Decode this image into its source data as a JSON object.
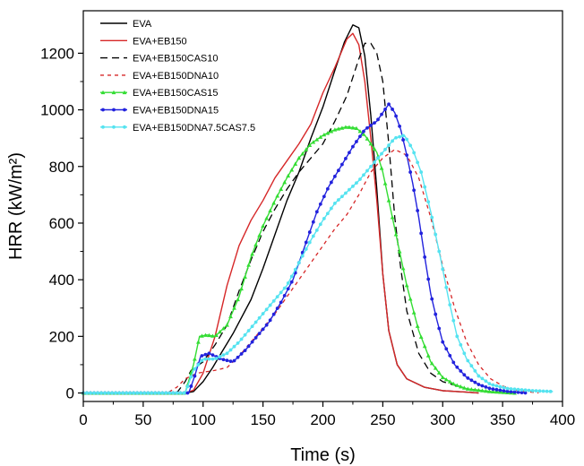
{
  "chart_data": {
    "type": "line",
    "xlabel": "Time (s)",
    "ylabel": "HRR (kW/m²)",
    "xlim": [
      0,
      400
    ],
    "ylim": [
      -30,
      1350
    ],
    "xticks": [
      0,
      50,
      100,
      150,
      200,
      250,
      300,
      350,
      400
    ],
    "yticks": [
      0,
      200,
      400,
      600,
      800,
      1000,
      1200
    ],
    "grid": false,
    "legend_position": "top-left",
    "series": [
      {
        "name": "EVA",
        "color": "#000000",
        "dash": "solid",
        "marker": "none",
        "points": [
          [
            0,
            0
          ],
          [
            85,
            0
          ],
          [
            92,
            5
          ],
          [
            100,
            40
          ],
          [
            108,
            90
          ],
          [
            115,
            140
          ],
          [
            125,
            210
          ],
          [
            140,
            330
          ],
          [
            150,
            440
          ],
          [
            160,
            560
          ],
          [
            170,
            680
          ],
          [
            180,
            780
          ],
          [
            190,
            900
          ],
          [
            200,
            1010
          ],
          [
            210,
            1140
          ],
          [
            218,
            1240
          ],
          [
            225,
            1300
          ],
          [
            230,
            1290
          ],
          [
            235,
            1190
          ],
          [
            240,
            980
          ],
          [
            245,
            720
          ],
          [
            250,
            420
          ],
          [
            255,
            220
          ],
          [
            262,
            100
          ],
          [
            270,
            50
          ],
          [
            285,
            20
          ],
          [
            300,
            8
          ],
          [
            320,
            3
          ],
          [
            330,
            0
          ]
        ]
      },
      {
        "name": "EVA+EB150",
        "color": "#d62728",
        "dash": "solid",
        "marker": "none",
        "points": [
          [
            0,
            0
          ],
          [
            85,
            0
          ],
          [
            92,
            10
          ],
          [
            100,
            70
          ],
          [
            110,
            200
          ],
          [
            120,
            380
          ],
          [
            130,
            520
          ],
          [
            140,
            610
          ],
          [
            150,
            680
          ],
          [
            160,
            760
          ],
          [
            170,
            820
          ],
          [
            180,
            880
          ],
          [
            190,
            950
          ],
          [
            200,
            1060
          ],
          [
            210,
            1150
          ],
          [
            220,
            1250
          ],
          [
            225,
            1270
          ],
          [
            230,
            1230
          ],
          [
            235,
            1100
          ],
          [
            240,
            900
          ],
          [
            245,
            680
          ],
          [
            250,
            420
          ],
          [
            255,
            220
          ],
          [
            262,
            100
          ],
          [
            270,
            50
          ],
          [
            285,
            20
          ],
          [
            300,
            8
          ],
          [
            320,
            3
          ],
          [
            330,
            0
          ]
        ]
      },
      {
        "name": "EVA+EB150CAS10",
        "color": "#000000",
        "dash": "8,5",
        "marker": "none",
        "points": [
          [
            0,
            0
          ],
          [
            78,
            0
          ],
          [
            85,
            40
          ],
          [
            90,
            80
          ],
          [
            100,
            110
          ],
          [
            110,
            170
          ],
          [
            120,
            240
          ],
          [
            130,
            360
          ],
          [
            140,
            470
          ],
          [
            150,
            570
          ],
          [
            160,
            650
          ],
          [
            170,
            720
          ],
          [
            180,
            780
          ],
          [
            190,
            830
          ],
          [
            200,
            880
          ],
          [
            210,
            960
          ],
          [
            220,
            1050
          ],
          [
            230,
            1180
          ],
          [
            235,
            1235
          ],
          [
            240,
            1235
          ],
          [
            245,
            1200
          ],
          [
            250,
            1100
          ],
          [
            255,
            880
          ],
          [
            260,
            620
          ],
          [
            265,
            440
          ],
          [
            270,
            290
          ],
          [
            280,
            140
          ],
          [
            290,
            70
          ],
          [
            300,
            40
          ],
          [
            320,
            15
          ],
          [
            340,
            5
          ],
          [
            360,
            0
          ]
        ]
      },
      {
        "name": "EVA+EB150DNA10",
        "color": "#d62728",
        "dash": "4,4",
        "marker": "none",
        "points": [
          [
            0,
            0
          ],
          [
            70,
            0
          ],
          [
            78,
            20
          ],
          [
            85,
            50
          ],
          [
            95,
            70
          ],
          [
            110,
            80
          ],
          [
            120,
            90
          ],
          [
            130,
            130
          ],
          [
            140,
            180
          ],
          [
            150,
            230
          ],
          [
            160,
            280
          ],
          [
            170,
            340
          ],
          [
            180,
            400
          ],
          [
            190,
            460
          ],
          [
            200,
            520
          ],
          [
            210,
            580
          ],
          [
            220,
            630
          ],
          [
            230,
            700
          ],
          [
            240,
            780
          ],
          [
            250,
            830
          ],
          [
            260,
            860
          ],
          [
            270,
            840
          ],
          [
            280,
            760
          ],
          [
            290,
            620
          ],
          [
            300,
            450
          ],
          [
            310,
            300
          ],
          [
            320,
            180
          ],
          [
            330,
            100
          ],
          [
            340,
            50
          ],
          [
            350,
            25
          ],
          [
            360,
            10
          ],
          [
            380,
            0
          ]
        ]
      },
      {
        "name": "EVA+EB150CAS15",
        "color": "#33dd33",
        "dash": "solid",
        "marker": "tri",
        "points": [
          [
            0,
            0
          ],
          [
            85,
            0
          ],
          [
            92,
            100
          ],
          [
            97,
            200
          ],
          [
            103,
            205
          ],
          [
            110,
            200
          ],
          [
            120,
            240
          ],
          [
            130,
            340
          ],
          [
            140,
            480
          ],
          [
            150,
            590
          ],
          [
            160,
            680
          ],
          [
            170,
            760
          ],
          [
            180,
            830
          ],
          [
            190,
            880
          ],
          [
            200,
            910
          ],
          [
            210,
            930
          ],
          [
            220,
            940
          ],
          [
            228,
            935
          ],
          [
            235,
            910
          ],
          [
            245,
            850
          ],
          [
            250,
            780
          ],
          [
            260,
            580
          ],
          [
            270,
            380
          ],
          [
            280,
            220
          ],
          [
            290,
            110
          ],
          [
            300,
            55
          ],
          [
            310,
            30
          ],
          [
            320,
            15
          ],
          [
            340,
            5
          ],
          [
            360,
            0
          ]
        ]
      },
      {
        "name": "EVA+EB150DNA15",
        "color": "#2222dd",
        "dash": "solid",
        "marker": "dot",
        "points": [
          [
            0,
            0
          ],
          [
            88,
            0
          ],
          [
            93,
            60
          ],
          [
            98,
            130
          ],
          [
            105,
            140
          ],
          [
            115,
            120
          ],
          [
            125,
            110
          ],
          [
            135,
            150
          ],
          [
            145,
            200
          ],
          [
            155,
            250
          ],
          [
            165,
            320
          ],
          [
            175,
            400
          ],
          [
            185,
            520
          ],
          [
            195,
            640
          ],
          [
            205,
            730
          ],
          [
            215,
            800
          ],
          [
            225,
            870
          ],
          [
            235,
            930
          ],
          [
            245,
            960
          ],
          [
            255,
            1020
          ],
          [
            260,
            990
          ],
          [
            265,
            930
          ],
          [
            270,
            840
          ],
          [
            275,
            740
          ],
          [
            280,
            620
          ],
          [
            285,
            480
          ],
          [
            290,
            350
          ],
          [
            295,
            260
          ],
          [
            300,
            180
          ],
          [
            310,
            100
          ],
          [
            320,
            55
          ],
          [
            330,
            30
          ],
          [
            340,
            15
          ],
          [
            355,
            5
          ],
          [
            370,
            0
          ]
        ]
      },
      {
        "name": "EVA+EB150DNA7.5CAS7.5",
        "color": "#55e3f0",
        "dash": "solid",
        "marker": "dot",
        "points": [
          [
            0,
            0
          ],
          [
            85,
            0
          ],
          [
            92,
            80
          ],
          [
            100,
            120
          ],
          [
            110,
            120
          ],
          [
            120,
            140
          ],
          [
            130,
            180
          ],
          [
            140,
            230
          ],
          [
            150,
            280
          ],
          [
            160,
            330
          ],
          [
            170,
            380
          ],
          [
            180,
            460
          ],
          [
            190,
            540
          ],
          [
            200,
            610
          ],
          [
            210,
            670
          ],
          [
            220,
            710
          ],
          [
            230,
            750
          ],
          [
            240,
            800
          ],
          [
            250,
            850
          ],
          [
            260,
            900
          ],
          [
            268,
            910
          ],
          [
            275,
            860
          ],
          [
            282,
            780
          ],
          [
            290,
            640
          ],
          [
            298,
            480
          ],
          [
            305,
            330
          ],
          [
            312,
            200
          ],
          [
            320,
            120
          ],
          [
            330,
            60
          ],
          [
            340,
            30
          ],
          [
            355,
            15
          ],
          [
            375,
            8
          ],
          [
            392,
            5
          ]
        ]
      }
    ]
  }
}
